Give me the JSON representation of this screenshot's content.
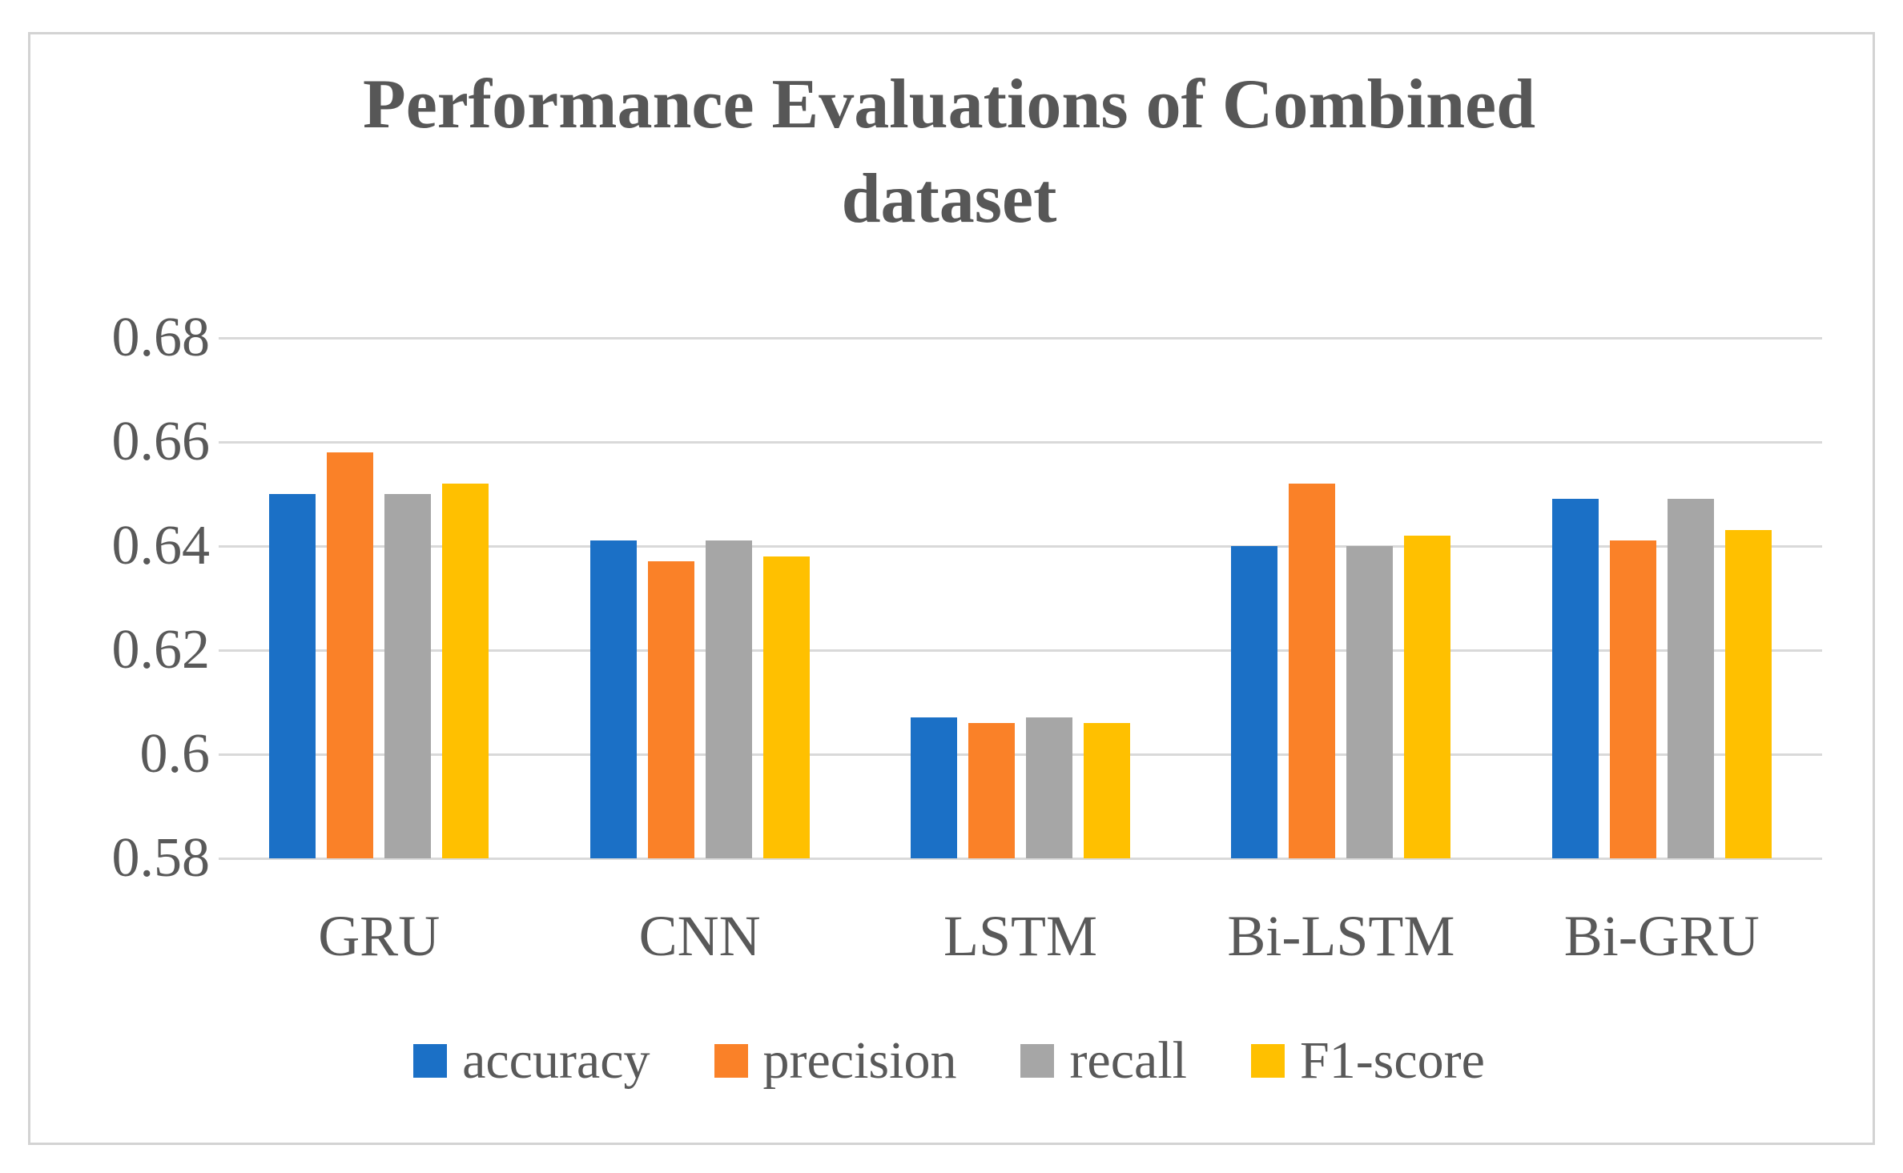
{
  "chart_data": {
    "type": "bar",
    "title": "Performance Evaluations of Combined dataset",
    "title_lines": [
      "Performance Evaluations of Combined",
      "dataset"
    ],
    "categories": [
      "GRU",
      "CNN",
      "LSTM",
      "Bi-LSTM",
      "Bi-GRU"
    ],
    "series": [
      {
        "name": "accuracy",
        "color": "#1B70C6",
        "values": [
          0.65,
          0.641,
          0.607,
          0.64,
          0.649
        ]
      },
      {
        "name": "precision",
        "color": "#FA8128",
        "values": [
          0.658,
          0.637,
          0.606,
          0.652,
          0.641
        ]
      },
      {
        "name": "recall",
        "color": "#A6A6A6",
        "values": [
          0.65,
          0.641,
          0.607,
          0.64,
          0.649
        ]
      },
      {
        "name": "F1-score",
        "color": "#FFC000",
        "values": [
          0.652,
          0.638,
          0.606,
          0.642,
          0.643
        ]
      }
    ],
    "xlabel": "",
    "ylabel": "",
    "ylim": [
      0.58,
      0.68
    ],
    "ytick_step": 0.02,
    "ytick_labels": [
      "0.68",
      "0.66",
      "0.64",
      "0.62",
      "0.6",
      "0.58"
    ],
    "grid": "horizontal",
    "legend_position": "bottom"
  },
  "styles": {
    "title_color": "#575757",
    "axis_text_color": "#595959",
    "gridline_color": "#D9D9D9",
    "frame_border_color": "#D3D3D3",
    "background_color": "#FFFFFF"
  }
}
